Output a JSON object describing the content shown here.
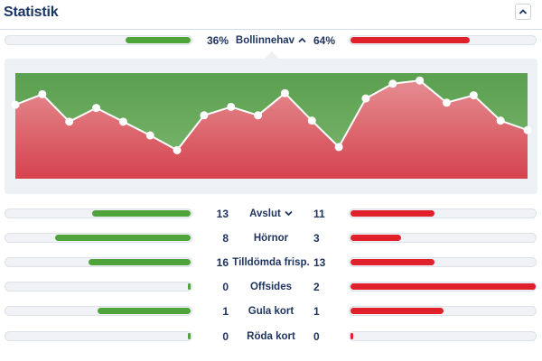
{
  "header": {
    "title": "Statistik"
  },
  "colors": {
    "home": "#4ea33a",
    "away": "#e0202a",
    "area_top": "#5fa656",
    "area_bottom": "#d8505a"
  },
  "possession": {
    "label": "Bollinnehav",
    "home_display": "36%",
    "away_display": "64%",
    "home": 36,
    "away": 64
  },
  "chart_data": {
    "type": "area",
    "y": [
      0.7,
      0.8,
      0.54,
      0.67,
      0.54,
      0.41,
      0.27,
      0.6,
      0.68,
      0.6,
      0.81,
      0.55,
      0.3,
      0.76,
      0.9,
      0.93,
      0.72,
      0.79,
      0.55,
      0.46
    ],
    "ylim": [
      0,
      1
    ]
  },
  "stats": [
    {
      "label": "Avslut",
      "home": 13,
      "away": 11,
      "home_ratio": 0.53,
      "away_ratio": 0.45,
      "chevron": true
    },
    {
      "label": "Hörnor",
      "home": 8,
      "away": 3,
      "home_ratio": 0.73,
      "away_ratio": 0.27
    },
    {
      "label": "Tilldömda frisp.",
      "home": 16,
      "away": 13,
      "home_ratio": 0.55,
      "away_ratio": 0.45
    },
    {
      "label": "Offsides",
      "home": 0,
      "away": 2,
      "home_ratio": 0.0,
      "away_ratio": 1.0
    },
    {
      "label": "Gula kort",
      "home": 1,
      "away": 1,
      "home_ratio": 0.5,
      "away_ratio": 0.5
    },
    {
      "label": "Röda kort",
      "home": 0,
      "away": 0,
      "home_ratio": 0.0,
      "away_ratio": 0.0
    }
  ]
}
